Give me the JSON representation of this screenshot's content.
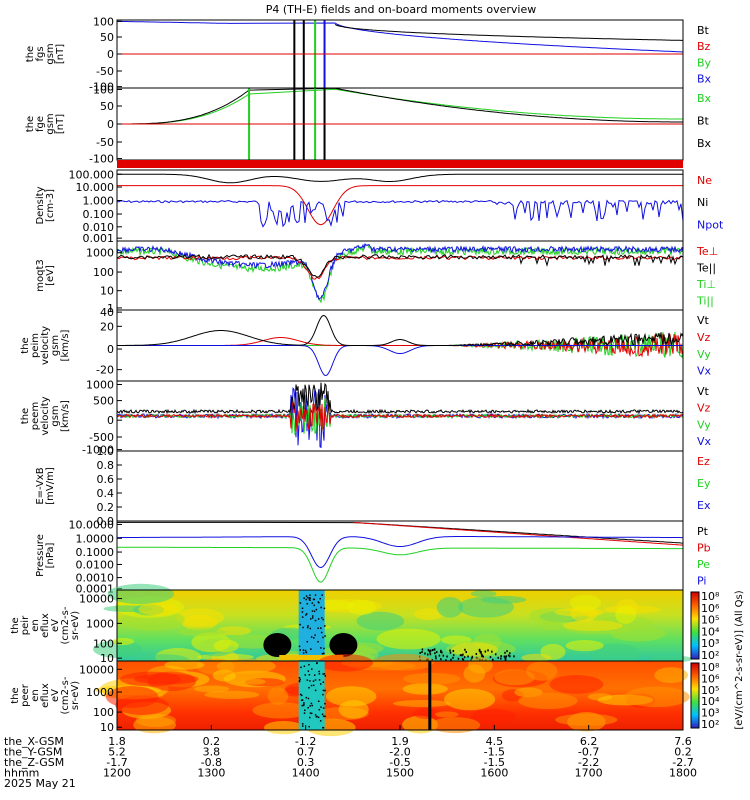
{
  "title": "P4 (TH-E) fields and on-board moments overview",
  "colors": {
    "black": "#000000",
    "red": "#e00000",
    "green": "#20d020",
    "blue": "#1010e0"
  },
  "chart_data": {
    "type": "line",
    "date": "2025 May 21",
    "time_range": [
      "1200",
      "1800"
    ],
    "panels": [
      {
        "id": "fgs",
        "ylabel": [
          "the",
          "fgs",
          "gsm",
          "[nT]"
        ],
        "yticks": [
          "100",
          "50",
          "0",
          "-50",
          "-100"
        ],
        "ylim": [
          -100,
          100
        ],
        "legend": [
          {
            "label": "Bt",
            "color": "#000000"
          },
          {
            "label": "Bz",
            "color": "#e00000"
          },
          {
            "label": "By",
            "color": "#20d020"
          },
          {
            "label": "Bx",
            "color": "#1010e0"
          }
        ]
      },
      {
        "id": "fge",
        "ylabel": [
          "the",
          "fge",
          "gsm",
          "[nT]"
        ],
        "yticks": [
          "-100",
          "-50",
          "0",
          "50",
          "100"
        ],
        "ylim": [
          -100,
          100
        ],
        "legend": [
          {
            "label": "Bx",
            "color": "#20d020"
          },
          {
            "label": "Bt",
            "color": "#000000"
          },
          {
            "label": "Bx",
            "color": "#000000"
          }
        ]
      },
      {
        "id": "density",
        "ylabel": [
          "Density",
          "[cm-3]"
        ],
        "yticks": [
          "100.000",
          "10.000",
          "1.000",
          "0.100",
          "0.010",
          "0.001"
        ],
        "legend": [
          {
            "label": "Ne",
            "color": "#e00000"
          },
          {
            "label": "Ni",
            "color": "#000000"
          },
          {
            "label": "Npot",
            "color": "#1010e0"
          }
        ]
      },
      {
        "id": "temp",
        "ylabel": [
          "moqt3",
          "[eV]"
        ],
        "yticks": [
          "1000",
          "100",
          "10",
          "1"
        ],
        "legend": [
          {
            "label": "Te⊥",
            "color": "#e00000"
          },
          {
            "label": "Te||",
            "color": "#000000"
          },
          {
            "label": "Ti⊥",
            "color": "#20d020"
          },
          {
            "label": "Ti||",
            "color": "#20d020"
          }
        ]
      },
      {
        "id": "peim_vel",
        "ylabel": [
          "the",
          "peim",
          "velocity",
          "gsm",
          "[km/s]"
        ],
        "yticks": [
          "40",
          "20",
          "0",
          "-20"
        ],
        "legend": [
          {
            "label": "Vt",
            "color": "#000000"
          },
          {
            "label": "Vz",
            "color": "#e00000"
          },
          {
            "label": "Vy",
            "color": "#20d020"
          },
          {
            "label": "Vx",
            "color": "#1010e0"
          }
        ]
      },
      {
        "id": "peem_vel",
        "ylabel": [
          "the",
          "peem",
          "velocity",
          "gsm",
          "[km/s]"
        ],
        "yticks": [
          "1000",
          "500",
          "0",
          "-500",
          "-1000"
        ],
        "legend": [
          {
            "label": "Vt",
            "color": "#000000"
          },
          {
            "label": "Vz",
            "color": "#e00000"
          },
          {
            "label": "Vy",
            "color": "#20d020"
          },
          {
            "label": "Vx",
            "color": "#1010e0"
          }
        ]
      },
      {
        "id": "efield",
        "ylabel": [
          "E=-VxB",
          "[mV/m]"
        ],
        "yticks": [
          "1.0",
          "0.8",
          "0.6",
          "0.4",
          "0.2",
          "0.0"
        ],
        "ylim": [
          0,
          1
        ],
        "legend": [
          {
            "label": "Ez",
            "color": "#e00000"
          },
          {
            "label": "Ey",
            "color": "#20d020"
          },
          {
            "label": "Ex",
            "color": "#1010e0"
          }
        ]
      },
      {
        "id": "pressure",
        "ylabel": [
          "Pressure",
          "[nPa]"
        ],
        "yticks": [
          "10.0000",
          "1.0000",
          "0.1000",
          "0.0100",
          "0.0010",
          "0.0001"
        ],
        "legend": [
          {
            "label": "Pt",
            "color": "#000000"
          },
          {
            "label": "Pb",
            "color": "#e00000"
          },
          {
            "label": "Pe",
            "color": "#20d020"
          },
          {
            "label": "Pi",
            "color": "#1010e0"
          }
        ]
      },
      {
        "id": "peir",
        "type": "heatmap",
        "ylabel": [
          "the",
          "peir",
          "en",
          "eflux",
          "eV",
          "(cm2-s-",
          "sr-eV)"
        ],
        "yticks": [
          "10000",
          "1000",
          "100",
          "10"
        ]
      },
      {
        "id": "peer",
        "type": "heatmap",
        "ylabel": [
          "the",
          "peer",
          "en",
          "eflux",
          "eV",
          "(cm2-s-",
          "sr-eV)"
        ],
        "yticks": [
          "10000",
          "1000",
          "100",
          "10"
        ]
      }
    ],
    "colorbar": {
      "label": "[eV/(cm^2-s-sr-eV)] (All Qs)",
      "ticks_top": [
        "10⁸",
        "10⁶",
        "10⁵",
        "10⁴",
        "10³",
        "10²"
      ],
      "ticks_bottom": [
        "10⁸",
        "10⁶",
        "10⁵",
        "10⁴",
        "10³",
        "10²"
      ]
    },
    "xaxis": {
      "rows": [
        {
          "name": "the_X-GSM",
          "values": [
            "1.8",
            "0.2",
            "-1.2",
            "1.9",
            "4.5",
            "6.2",
            "7.6"
          ]
        },
        {
          "name": "the_Y-GSM",
          "values": [
            "5.2",
            "3.8",
            "0.7",
            "-2.0",
            "-1.5",
            "-0.7",
            "0.2"
          ]
        },
        {
          "name": "the_Z-GSM",
          "values": [
            "-1.7",
            "-0.8",
            "0.3",
            "-0.5",
            "-1.5",
            "-2.2",
            "-2.7"
          ]
        },
        {
          "name": "hhmm",
          "values": [
            "1200",
            "1300",
            "1400",
            "1500",
            "1600",
            "1700",
            "1800"
          ]
        }
      ]
    }
  }
}
